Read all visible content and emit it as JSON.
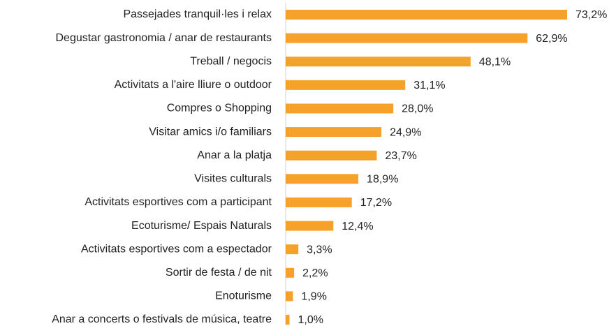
{
  "chart_data": {
    "type": "bar",
    "orientation": "horizontal",
    "color": "#f5a12a",
    "categories": [
      "Passejades tranquil·les i relax",
      "Degustar gastronomia / anar de restaurants",
      "Treball / negocis",
      "Activitats a l'aire lliure o outdoor",
      "Compres o Shopping",
      "Visitar amics i/o familiars",
      "Anar a la platja",
      "Visites culturals",
      "Activitats esportives com a participant",
      "Ecoturisme/ Espais Naturals",
      "Activitats esportives com a espectador",
      "Sortir de festa / de nit",
      "Enoturisme",
      "Anar a concerts o festivals de música, teatre"
    ],
    "values": [
      73.2,
      62.9,
      48.1,
      31.1,
      28.0,
      24.9,
      23.7,
      18.9,
      17.2,
      12.4,
      3.3,
      2.2,
      1.9,
      1.0
    ],
    "value_labels": [
      "73,2%",
      "62,9%",
      "48,1%",
      "31,1%",
      "28,0%",
      "24,9%",
      "23,7%",
      "18,9%",
      "17,2%",
      "12,4%",
      "3,3%",
      "2,2%",
      "1,9%",
      "1,0%"
    ]
  }
}
